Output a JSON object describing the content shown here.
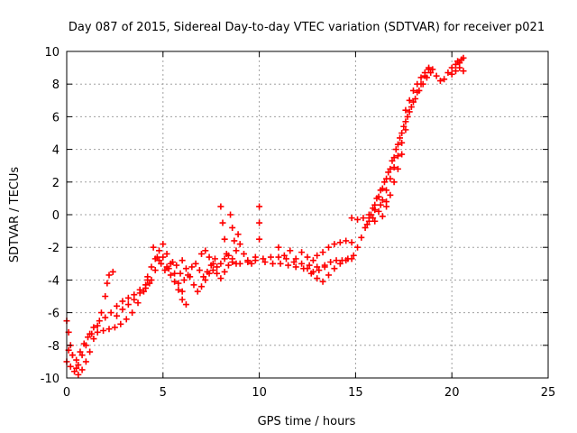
{
  "chart_data": {
    "type": "scatter",
    "title": "Day 087 of 2015, Sidereal Day-to-day VTEC variation (SDTVAR) for receiver p021",
    "xlabel": "GPS time / hours",
    "ylabel": "SDTVAR / TECUs",
    "xlim": [
      0,
      25
    ],
    "ylim": [
      -10,
      10
    ],
    "x_ticks": [
      0,
      5,
      10,
      15,
      20,
      25
    ],
    "y_ticks": [
      -10,
      -8,
      -6,
      -4,
      -2,
      0,
      2,
      4,
      6,
      8,
      10
    ],
    "x_tick_labels": [
      "0",
      "5",
      "10",
      "15",
      "20",
      "25"
    ],
    "y_tick_labels": [
      "-10",
      "-8",
      "-6",
      "-4",
      "-2",
      "0",
      "2",
      "4",
      "6",
      "8",
      "10"
    ],
    "grid": true,
    "marker": "+",
    "color": "#ff0000",
    "series": [
      {
        "values": [
          [
            0.0,
            -6.5
          ],
          [
            0.1,
            -7.2
          ],
          [
            0.2,
            -8.0
          ],
          [
            0.3,
            -8.6
          ],
          [
            0.5,
            -9.4
          ],
          [
            0.6,
            -9.8
          ],
          [
            0.8,
            -9.5
          ],
          [
            1.0,
            -9.0
          ],
          [
            1.2,
            -8.4
          ],
          [
            1.4,
            -7.6
          ],
          [
            1.6,
            -6.8
          ],
          [
            1.8,
            -6.0
          ],
          [
            2.0,
            -5.0
          ],
          [
            2.1,
            -4.2
          ],
          [
            2.2,
            -3.7
          ],
          [
            2.4,
            -3.5
          ],
          [
            0.0,
            -9.0
          ],
          [
            0.2,
            -9.3
          ],
          [
            0.4,
            -9.6
          ],
          [
            0.6,
            -9.2
          ],
          [
            0.8,
            -8.6
          ],
          [
            1.0,
            -8.0
          ],
          [
            1.2,
            -7.3
          ],
          [
            1.4,
            -6.9
          ],
          [
            1.7,
            -6.5
          ],
          [
            2.0,
            -6.3
          ],
          [
            2.3,
            -6.0
          ],
          [
            2.6,
            -5.6
          ],
          [
            2.9,
            -5.3
          ],
          [
            3.2,
            -5.1
          ],
          [
            3.5,
            -4.9
          ],
          [
            3.8,
            -4.6
          ],
          [
            4.1,
            -4.3
          ],
          [
            0.1,
            -8.3
          ],
          [
            0.3,
            -8.6
          ],
          [
            0.5,
            -8.9
          ],
          [
            0.7,
            -8.4
          ],
          [
            0.9,
            -7.9
          ],
          [
            1.1,
            -7.5
          ],
          [
            1.3,
            -7.3
          ],
          [
            1.6,
            -7.2
          ],
          [
            1.9,
            -7.1
          ],
          [
            2.2,
            -7.0
          ],
          [
            2.5,
            -6.9
          ],
          [
            2.8,
            -6.7
          ],
          [
            3.1,
            -6.4
          ],
          [
            3.4,
            -6.0
          ],
          [
            3.7,
            -5.4
          ],
          [
            4.0,
            -4.7
          ],
          [
            4.2,
            -4.0
          ],
          [
            2.6,
            -6.2
          ],
          [
            2.9,
            -5.8
          ],
          [
            3.2,
            -5.5
          ],
          [
            3.5,
            -5.2
          ],
          [
            3.8,
            -4.8
          ],
          [
            4.1,
            -4.5
          ],
          [
            4.3,
            -4.2
          ],
          [
            4.2,
            -3.8
          ],
          [
            4.4,
            -3.2
          ],
          [
            4.6,
            -2.7
          ],
          [
            4.8,
            -2.2
          ],
          [
            5.0,
            -1.8
          ],
          [
            5.2,
            -2.4
          ],
          [
            5.4,
            -3.0
          ],
          [
            5.6,
            -3.6
          ],
          [
            5.8,
            -4.2
          ],
          [
            6.0,
            -4.7
          ],
          [
            4.4,
            -4.0
          ],
          [
            4.6,
            -3.4
          ],
          [
            4.8,
            -2.8
          ],
          [
            5.0,
            -2.6
          ],
          [
            5.2,
            -3.2
          ],
          [
            5.4,
            -3.7
          ],
          [
            5.6,
            -4.1
          ],
          [
            5.8,
            -4.6
          ],
          [
            6.0,
            -5.2
          ],
          [
            6.2,
            -5.5
          ],
          [
            4.5,
            -2.0
          ],
          [
            4.7,
            -2.6
          ],
          [
            4.9,
            -3.0
          ],
          [
            5.1,
            -3.4
          ],
          [
            5.3,
            -3.3
          ],
          [
            5.5,
            -2.9
          ],
          [
            5.7,
            -3.1
          ],
          [
            5.9,
            -3.6
          ],
          [
            6.1,
            -4.0
          ],
          [
            6.3,
            -3.7
          ],
          [
            6.5,
            -3.2
          ],
          [
            6.7,
            -3.0
          ],
          [
            6.9,
            -3.4
          ],
          [
            7.1,
            -3.8
          ],
          [
            7.3,
            -3.5
          ],
          [
            7.5,
            -3.1
          ],
          [
            7.7,
            -2.7
          ],
          [
            6.0,
            -2.8
          ],
          [
            6.2,
            -3.3
          ],
          [
            6.4,
            -3.8
          ],
          [
            6.6,
            -4.3
          ],
          [
            6.8,
            -4.7
          ],
          [
            7.0,
            -4.4
          ],
          [
            7.2,
            -4.0
          ],
          [
            7.4,
            -3.6
          ],
          [
            7.6,
            -3.4
          ],
          [
            7.8,
            -3.6
          ],
          [
            8.0,
            -3.9
          ],
          [
            8.2,
            -3.5
          ],
          [
            8.4,
            -3.1
          ],
          [
            8.6,
            -2.9
          ],
          [
            7.0,
            -2.4
          ],
          [
            7.2,
            -2.2
          ],
          [
            7.4,
            -2.6
          ],
          [
            7.6,
            -3.0
          ],
          [
            7.8,
            -3.2
          ],
          [
            8.0,
            -3.0
          ],
          [
            8.2,
            -2.7
          ],
          [
            8.4,
            -2.5
          ],
          [
            8.6,
            -2.7
          ],
          [
            8.8,
            -3.0
          ],
          [
            8.0,
            0.5
          ],
          [
            8.1,
            -0.5
          ],
          [
            8.2,
            -1.5
          ],
          [
            8.3,
            -2.4
          ],
          [
            8.5,
            0.0
          ],
          [
            8.6,
            -0.8
          ],
          [
            8.7,
            -1.6
          ],
          [
            8.8,
            -2.2
          ],
          [
            8.9,
            -1.2
          ],
          [
            9.0,
            -1.8
          ],
          [
            9.2,
            -2.4
          ],
          [
            9.4,
            -2.8
          ],
          [
            9.6,
            -3.0
          ],
          [
            9.8,
            -2.6
          ],
          [
            10.0,
            0.5
          ],
          [
            10.0,
            -0.5
          ],
          [
            10.0,
            -1.5
          ],
          [
            9.0,
            -3.0
          ],
          [
            9.4,
            -2.9
          ],
          [
            9.8,
            -2.8
          ],
          [
            10.2,
            -2.7
          ],
          [
            10.6,
            -2.6
          ],
          [
            11.0,
            -2.6
          ],
          [
            11.4,
            -2.7
          ],
          [
            11.8,
            -2.9
          ],
          [
            12.2,
            -3.0
          ],
          [
            12.6,
            -3.1
          ],
          [
            13.0,
            -3.2
          ],
          [
            13.4,
            -3.1
          ],
          [
            10.3,
            -2.9
          ],
          [
            10.7,
            -3.0
          ],
          [
            11.1,
            -3.0
          ],
          [
            11.5,
            -3.1
          ],
          [
            11.9,
            -3.2
          ],
          [
            12.3,
            -3.3
          ],
          [
            12.7,
            -3.6
          ],
          [
            13.0,
            -3.9
          ],
          [
            13.3,
            -4.1
          ],
          [
            13.6,
            -3.7
          ],
          [
            13.9,
            -3.3
          ],
          [
            14.2,
            -3.0
          ],
          [
            14.5,
            -2.8
          ],
          [
            14.8,
            -2.7
          ],
          [
            11.0,
            -2.0
          ],
          [
            11.3,
            -2.5
          ],
          [
            11.6,
            -2.2
          ],
          [
            11.9,
            -2.7
          ],
          [
            12.2,
            -2.3
          ],
          [
            12.5,
            -2.6
          ],
          [
            12.8,
            -2.8
          ],
          [
            13.0,
            -2.5
          ],
          [
            13.3,
            -2.3
          ],
          [
            13.6,
            -2.0
          ],
          [
            13.9,
            -1.8
          ],
          [
            14.2,
            -1.7
          ],
          [
            14.5,
            -1.6
          ],
          [
            14.8,
            -1.7
          ],
          [
            12.5,
            -3.3
          ],
          [
            12.8,
            -3.5
          ],
          [
            13.1,
            -3.4
          ],
          [
            13.4,
            -3.2
          ],
          [
            13.7,
            -2.9
          ],
          [
            14.0,
            -2.8
          ],
          [
            14.3,
            -2.8
          ],
          [
            14.6,
            -2.7
          ],
          [
            14.9,
            -2.5
          ],
          [
            15.1,
            -2.0
          ],
          [
            15.3,
            -1.4
          ],
          [
            15.5,
            -0.8
          ],
          [
            15.7,
            -0.4
          ],
          [
            15.9,
            -0.2
          ],
          [
            14.8,
            -0.2
          ],
          [
            15.1,
            -0.3
          ],
          [
            15.4,
            -0.2
          ],
          [
            15.7,
            0.0
          ],
          [
            16.0,
            0.3
          ],
          [
            16.3,
            0.6
          ],
          [
            16.6,
            0.8
          ],
          [
            15.6,
            -0.6
          ],
          [
            15.8,
            0.0
          ],
          [
            16.0,
            0.6
          ],
          [
            16.2,
            1.1
          ],
          [
            16.4,
            1.6
          ],
          [
            16.6,
            2.2
          ],
          [
            16.8,
            2.8
          ],
          [
            17.0,
            3.5
          ],
          [
            17.2,
            4.3
          ],
          [
            17.4,
            5.0
          ],
          [
            17.6,
            5.7
          ],
          [
            17.8,
            6.3
          ],
          [
            18.0,
            6.9
          ],
          [
            18.2,
            7.5
          ],
          [
            18.4,
            8.0
          ],
          [
            18.6,
            8.5
          ],
          [
            18.8,
            8.9
          ],
          [
            15.7,
            -0.2
          ],
          [
            15.9,
            0.4
          ],
          [
            16.1,
            1.0
          ],
          [
            16.3,
            1.5
          ],
          [
            16.5,
            2.0
          ],
          [
            16.7,
            2.6
          ],
          [
            16.9,
            3.3
          ],
          [
            17.1,
            4.0
          ],
          [
            17.3,
            4.7
          ],
          [
            17.5,
            5.4
          ],
          [
            17.7,
            6.0
          ],
          [
            17.9,
            6.6
          ],
          [
            18.1,
            7.1
          ],
          [
            18.3,
            7.6
          ],
          [
            18.5,
            8.0
          ],
          [
            18.7,
            8.4
          ],
          [
            18.9,
            8.7
          ],
          [
            16.0,
            -0.4
          ],
          [
            16.2,
            0.2
          ],
          [
            16.4,
            0.9
          ],
          [
            16.6,
            1.5
          ],
          [
            16.8,
            2.2
          ],
          [
            17.0,
            2.9
          ],
          [
            17.2,
            3.6
          ],
          [
            17.4,
            4.4
          ],
          [
            17.6,
            5.2
          ],
          [
            16.4,
            -0.1
          ],
          [
            16.6,
            0.5
          ],
          [
            16.8,
            1.2
          ],
          [
            17.0,
            2.0
          ],
          [
            17.2,
            2.8
          ],
          [
            17.4,
            3.7
          ],
          [
            17.6,
            6.4
          ],
          [
            17.8,
            7.0
          ],
          [
            18.0,
            7.6
          ],
          [
            18.2,
            8.0
          ],
          [
            18.4,
            8.4
          ],
          [
            18.6,
            8.7
          ],
          [
            18.8,
            9.0
          ],
          [
            19.0,
            8.9
          ],
          [
            19.2,
            8.5
          ],
          [
            19.4,
            8.2
          ],
          [
            19.6,
            8.3
          ],
          [
            19.8,
            8.7
          ],
          [
            20.0,
            9.0
          ],
          [
            20.2,
            9.2
          ],
          [
            20.4,
            9.3
          ],
          [
            20.6,
            9.6
          ],
          [
            20.0,
            8.6
          ],
          [
            20.2,
            8.8
          ],
          [
            20.4,
            9.0
          ],
          [
            20.6,
            8.8
          ],
          [
            20.3,
            9.4
          ],
          [
            20.5,
            9.5
          ]
        ]
      }
    ]
  }
}
